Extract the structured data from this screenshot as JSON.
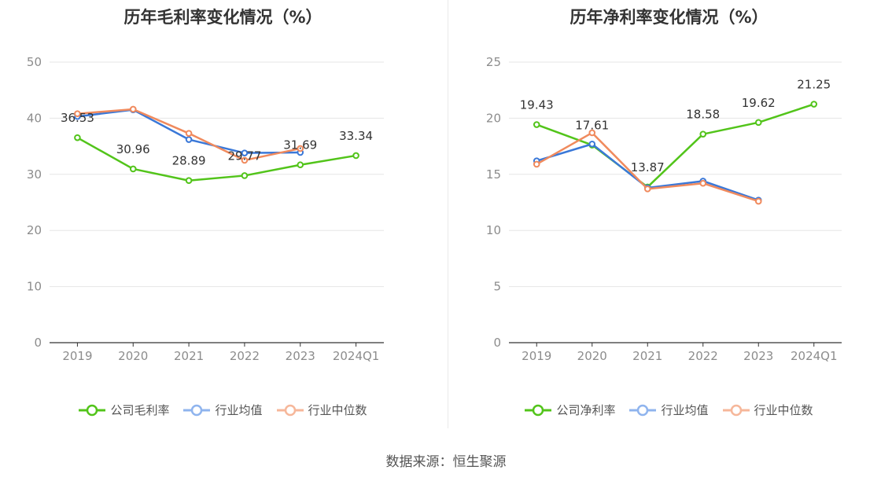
{
  "colors": {
    "company": "#52c41a",
    "avg": "#3a78d8",
    "median": "#f08a5d",
    "grid": "#e6e6e6",
    "axis": "#333333",
    "tick": "#8c8c8c",
    "label": "#333333"
  },
  "source": "数据来源：恒生聚源",
  "chart_data": [
    {
      "type": "line",
      "title": "历年毛利率变化情况（%）",
      "categories": [
        "2019",
        "2020",
        "2021",
        "2022",
        "2023",
        "2024Q1"
      ],
      "ylim": [
        0,
        50
      ],
      "yticks": [
        "0",
        "10",
        "20",
        "30",
        "40",
        "50"
      ],
      "grid": true,
      "legend_position": "bottom-center",
      "series": [
        {
          "name": "公司毛利率",
          "key": "company",
          "values": [
            36.53,
            30.96,
            28.89,
            29.77,
            31.69,
            33.34
          ],
          "labels": [
            "36.53",
            "30.96",
            "28.89",
            "29.77",
            "31.69",
            "33.34"
          ]
        },
        {
          "name": "行业均值",
          "key": "avg",
          "values": [
            40.3,
            41.5,
            36.2,
            33.8,
            33.9,
            null
          ]
        },
        {
          "name": "行业中位数",
          "key": "median",
          "values": [
            40.8,
            41.6,
            37.3,
            32.5,
            34.6,
            null
          ]
        }
      ]
    },
    {
      "type": "line",
      "title": "历年净利率变化情况（%）",
      "categories": [
        "2019",
        "2020",
        "2021",
        "2022",
        "2023",
        "2024Q1"
      ],
      "ylim": [
        0,
        25
      ],
      "yticks": [
        "0",
        "5",
        "10",
        "15",
        "20",
        "25"
      ],
      "grid": true,
      "legend_position": "bottom-center",
      "series": [
        {
          "name": "公司净利率",
          "key": "company",
          "values": [
            19.43,
            17.61,
            13.87,
            18.58,
            19.62,
            21.25
          ],
          "labels": [
            "19.43",
            "17.61",
            "13.87",
            "18.58",
            "19.62",
            "21.25"
          ]
        },
        {
          "name": "行业均值",
          "key": "avg",
          "values": [
            16.2,
            17.7,
            13.8,
            14.4,
            12.7,
            null
          ]
        },
        {
          "name": "行业中位数",
          "key": "median",
          "values": [
            15.9,
            18.7,
            13.7,
            14.2,
            12.6,
            null
          ]
        }
      ]
    }
  ]
}
